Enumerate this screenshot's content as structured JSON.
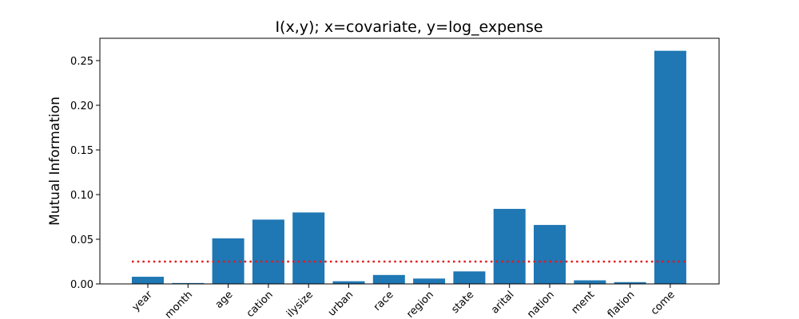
{
  "chart_data": {
    "type": "bar",
    "title": "I(x,y); x=covariate, y=log_expense",
    "xlabel": "",
    "ylabel": "Mutual Information",
    "categories": [
      "year",
      "month",
      "age",
      "education",
      "familysize",
      "urban",
      "race",
      "region",
      "state",
      "marital",
      "occupation",
      "employment",
      "inflation",
      "income"
    ],
    "category_labels_shown": [
      "year",
      "month",
      "age",
      "cation",
      "ilysize",
      "urban",
      "race",
      "region",
      "state",
      "arital",
      "nation",
      "ment",
      "flation",
      "come"
    ],
    "values": [
      0.008,
      0.001,
      0.051,
      0.072,
      0.08,
      0.003,
      0.01,
      0.006,
      0.014,
      0.084,
      0.066,
      0.004,
      0.002,
      0.261
    ],
    "ylim": [
      0,
      0.275
    ],
    "yticks": [
      0.0,
      0.05,
      0.1,
      0.15,
      0.2,
      0.25
    ],
    "ytick_labels": [
      "0.00",
      "0.05",
      "0.10",
      "0.15",
      "0.20",
      "0.25"
    ],
    "threshold": 0.025,
    "grid": false,
    "colors": {
      "bar": "#1f77b4",
      "threshold": "#e31a1c"
    }
  }
}
